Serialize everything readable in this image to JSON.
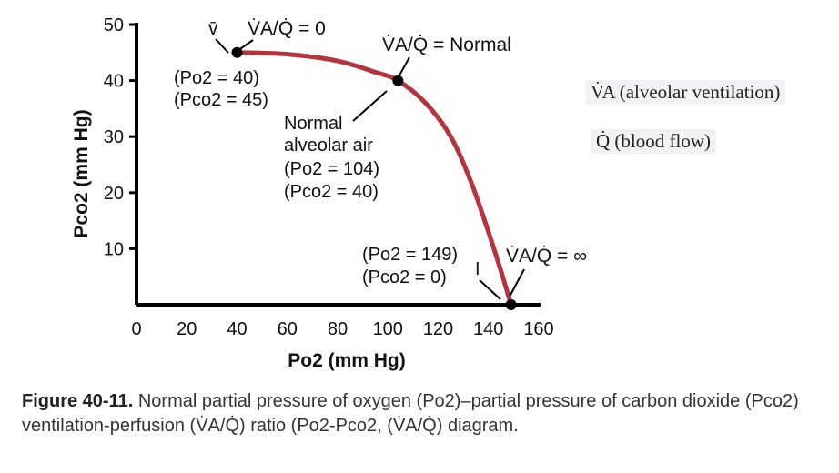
{
  "chart_data": {
    "type": "line",
    "xlabel": "Po2 (mm Hg)",
    "ylabel": "Pco2 (mm Hg)",
    "xlim": [
      0,
      160
    ],
    "ylim": [
      0,
      50
    ],
    "xticks": [
      0,
      20,
      40,
      60,
      80,
      100,
      120,
      140,
      160
    ],
    "yticks": [
      10,
      20,
      30,
      40,
      50
    ],
    "line_color": "#b5323f",
    "series": [
      {
        "x": [
          40,
          60,
          80,
          95,
          104,
          115,
          125,
          133,
          140,
          145,
          149
        ],
        "y": [
          45,
          44.7,
          43.5,
          41.5,
          40,
          36,
          30,
          22,
          13,
          6,
          0
        ]
      }
    ],
    "points": [
      {
        "label": "v̄",
        "x": 40,
        "y": 45,
        "ratio": "V̇A/Q̇ = 0",
        "po2": "(Po2 = 40)",
        "pco2": "(Pco2 = 45)"
      },
      {
        "label": "Normal alveolar air",
        "x": 104,
        "y": 40,
        "ratio": "V̇A/Q̇ = Normal",
        "po2": "(Po2 = 104)",
        "pco2": "(Pco2 = 40)"
      },
      {
        "label": "I",
        "x": 149,
        "y": 0,
        "ratio": "V̇A/Q̇ = ∞",
        "po2": "(Po2 = 149)",
        "pco2": "(Pco2 = 0)"
      }
    ]
  },
  "legend": {
    "va": "V̇A (alveolar ventilation)",
    "q": "Q̇ (blood flow)"
  },
  "caption": {
    "label": "Figure 40-11.",
    "text": "Normal partial pressure of oxygen (Po2)–partial pressure of carbon dioxide (Pco2) ventilation-perfusion (V̇A/Q̇) ratio (Po2-Pco2, (V̇A/Q̇) diagram."
  }
}
